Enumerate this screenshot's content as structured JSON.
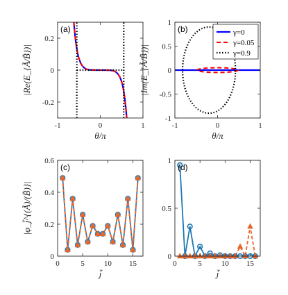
{
  "chart_data": [
    {
      "type": "line",
      "panel_label": "(a)",
      "xlabel": "θ/π",
      "ylabel": "|Re(E_{Ã/B̃})|",
      "xlim": [
        -1,
        1
      ],
      "ylim": [
        -0.3,
        0.3
      ],
      "xticks": [
        "-1",
        "0",
        "1"
      ],
      "yticks": [
        "-0.2",
        "0",
        "0.2"
      ],
      "series": [
        {
          "name": "γ=0",
          "color": "#0000ff",
          "style": "solid",
          "x": [
            -0.62,
            -0.6,
            -0.58,
            -0.56,
            -0.54,
            -0.52,
            -0.5,
            -0.46,
            -0.42,
            -0.38,
            -0.34,
            -0.3,
            -0.26,
            -0.22,
            -0.18,
            -0.14,
            -0.1,
            -0.05,
            0,
            0.05,
            0.1,
            0.14,
            0.18,
            0.22,
            0.26,
            0.3,
            0.34,
            0.38,
            0.42,
            0.46,
            0.5,
            0.52,
            0.54,
            0.56,
            0.58,
            0.6,
            0.62
          ],
          "y": [
            0.3,
            0.24,
            0.19,
            0.15,
            0.118,
            0.092,
            0.072,
            0.044,
            0.026,
            0.015,
            0.008,
            0.004,
            0.002,
            0.001,
            0.0005,
            0.0002,
            0.0001,
            0,
            0,
            0,
            -0.0001,
            -0.0002,
            -0.0005,
            -0.001,
            -0.002,
            -0.004,
            -0.008,
            -0.015,
            -0.026,
            -0.044,
            -0.072,
            -0.092,
            -0.118,
            -0.15,
            -0.19,
            -0.24,
            -0.3
          ]
        },
        {
          "name": "γ=0.05",
          "color": "#ff0000",
          "style": "dashed",
          "x": [
            -0.62,
            -0.6,
            -0.58,
            -0.56,
            -0.54,
            -0.52,
            -0.5,
            -0.46,
            -0.42,
            -0.38,
            -0.34,
            -0.3,
            -0.26,
            -0.22,
            0,
            0.22,
            0.26,
            0.3,
            0.34,
            0.38,
            0.42,
            0.46,
            0.5,
            0.52,
            0.54,
            0.56,
            0.58,
            0.6,
            0.62
          ],
          "y": [
            0.3,
            0.24,
            0.19,
            0.15,
            0.118,
            0.092,
            0.072,
            0.044,
            0.026,
            0.015,
            0.008,
            0.004,
            0.002,
            0.001,
            0,
            -0.001,
            -0.002,
            -0.004,
            -0.008,
            -0.015,
            -0.026,
            -0.044,
            -0.072,
            -0.092,
            -0.118,
            -0.15,
            -0.19,
            -0.24,
            -0.3
          ]
        },
        {
          "name": "γ=0.9",
          "color": "#000000",
          "style": "dotted",
          "x": [
            -0.55,
            -0.4,
            -0.2,
            0,
            0.2,
            0.4,
            0.55
          ],
          "y": [
            0,
            0,
            0,
            0,
            0,
            0,
            0
          ],
          "x2": [
            -0.55,
            -0.55
          ],
          "y2": [
            -0.3,
            0.3
          ],
          "x3": [
            0.55,
            0.55
          ],
          "y3": [
            -0.3,
            0.3
          ]
        }
      ]
    },
    {
      "type": "line",
      "panel_label": "(b)",
      "xlabel": "θ/π",
      "ylabel": "|Im(E_{Ã/B̃})|",
      "xlim": [
        -1,
        1
      ],
      "ylim": [
        -1,
        1
      ],
      "xticks": [
        "-1",
        "0",
        "1"
      ],
      "yticks": [
        "-1",
        "-0.5",
        "0",
        "0.5",
        "1"
      ],
      "legend": {
        "placement": "top-right",
        "entries": [
          "γ=0",
          "γ=0.05",
          "γ=0.9"
        ]
      },
      "series": [
        {
          "name": "γ=0",
          "color": "#0000ff",
          "style": "solid",
          "x": [
            -1,
            1
          ],
          "y": [
            0,
            0
          ]
        },
        {
          "name": "γ=0.05",
          "color": "#ff0000",
          "style": "dashed",
          "shape": "ellipse",
          "center": [
            0,
            0
          ],
          "rx": 0.48,
          "ry": 0.05
        },
        {
          "name": "γ=0.9",
          "color": "#000000",
          "style": "dotted",
          "shape": "ellipse",
          "center": [
            -0.2,
            0
          ],
          "rx": 0.62,
          "ry": 0.9
        }
      ]
    },
    {
      "type": "line",
      "panel_label": "(c)",
      "xlabel": "j̃",
      "ylabel": "|φ_j̃^{(Ã)/(B̃)}|",
      "xlim": [
        0,
        17
      ],
      "ylim": [
        0,
        0.6
      ],
      "xticks": [
        "0",
        "5",
        "10",
        "15"
      ],
      "yticks": [
        "0",
        "0.2",
        "0.4",
        "0.6"
      ],
      "series": [
        {
          "name": "",
          "color": "#1f77b4",
          "style": "solid-circle",
          "x": [
            1,
            2,
            3,
            4,
            5,
            6,
            7,
            8,
            9,
            10,
            11,
            12,
            13,
            14,
            15,
            16
          ],
          "y": [
            0.49,
            0.04,
            0.36,
            0.07,
            0.26,
            0.09,
            0.19,
            0.14,
            0.14,
            0.19,
            0.09,
            0.26,
            0.07,
            0.36,
            0.04,
            0.49
          ]
        },
        {
          "name": "",
          "color": "#e8662a",
          "style": "dashed-triangle",
          "x": [
            1,
            2,
            3,
            4,
            5,
            6,
            7,
            8,
            9,
            10,
            11,
            12,
            13,
            14,
            15,
            16
          ],
          "y": [
            0.49,
            0.04,
            0.36,
            0.07,
            0.26,
            0.09,
            0.19,
            0.14,
            0.14,
            0.19,
            0.09,
            0.26,
            0.07,
            0.36,
            0.04,
            0.49
          ]
        }
      ]
    },
    {
      "type": "line",
      "panel_label": "(d)",
      "xlabel": "j̃",
      "ylabel": "",
      "xlim": [
        0,
        17
      ],
      "ylim": [
        0,
        1
      ],
      "xticks": [
        "0",
        "5",
        "10",
        "15"
      ],
      "yticks": [
        "0",
        "0.5",
        "1"
      ],
      "series": [
        {
          "name": "",
          "color": "#1f77b4",
          "style": "solid-circle",
          "x": [
            1,
            2,
            3,
            4,
            5,
            6,
            7,
            8,
            9,
            10,
            11,
            12,
            13,
            14,
            15,
            16
          ],
          "y": [
            0.95,
            0.0,
            0.31,
            0.0,
            0.1,
            0.0,
            0.03,
            0.0,
            0.01,
            0.0,
            0.0,
            0.0,
            0.0,
            0.0,
            0.0,
            0.0
          ]
        },
        {
          "name": "",
          "color": "#e8662a",
          "style": "dashed-triangle",
          "x": [
            1,
            2,
            3,
            4,
            5,
            6,
            7,
            8,
            9,
            10,
            11,
            12,
            13,
            14,
            15,
            16
          ],
          "y": [
            0.0,
            0.0,
            0.0,
            0.0,
            0.0,
            0.0,
            0.0,
            0.0,
            0.0,
            0.0,
            0.0,
            0.0,
            0.1,
            0.0,
            0.31,
            0.0
          ]
        }
      ]
    }
  ]
}
